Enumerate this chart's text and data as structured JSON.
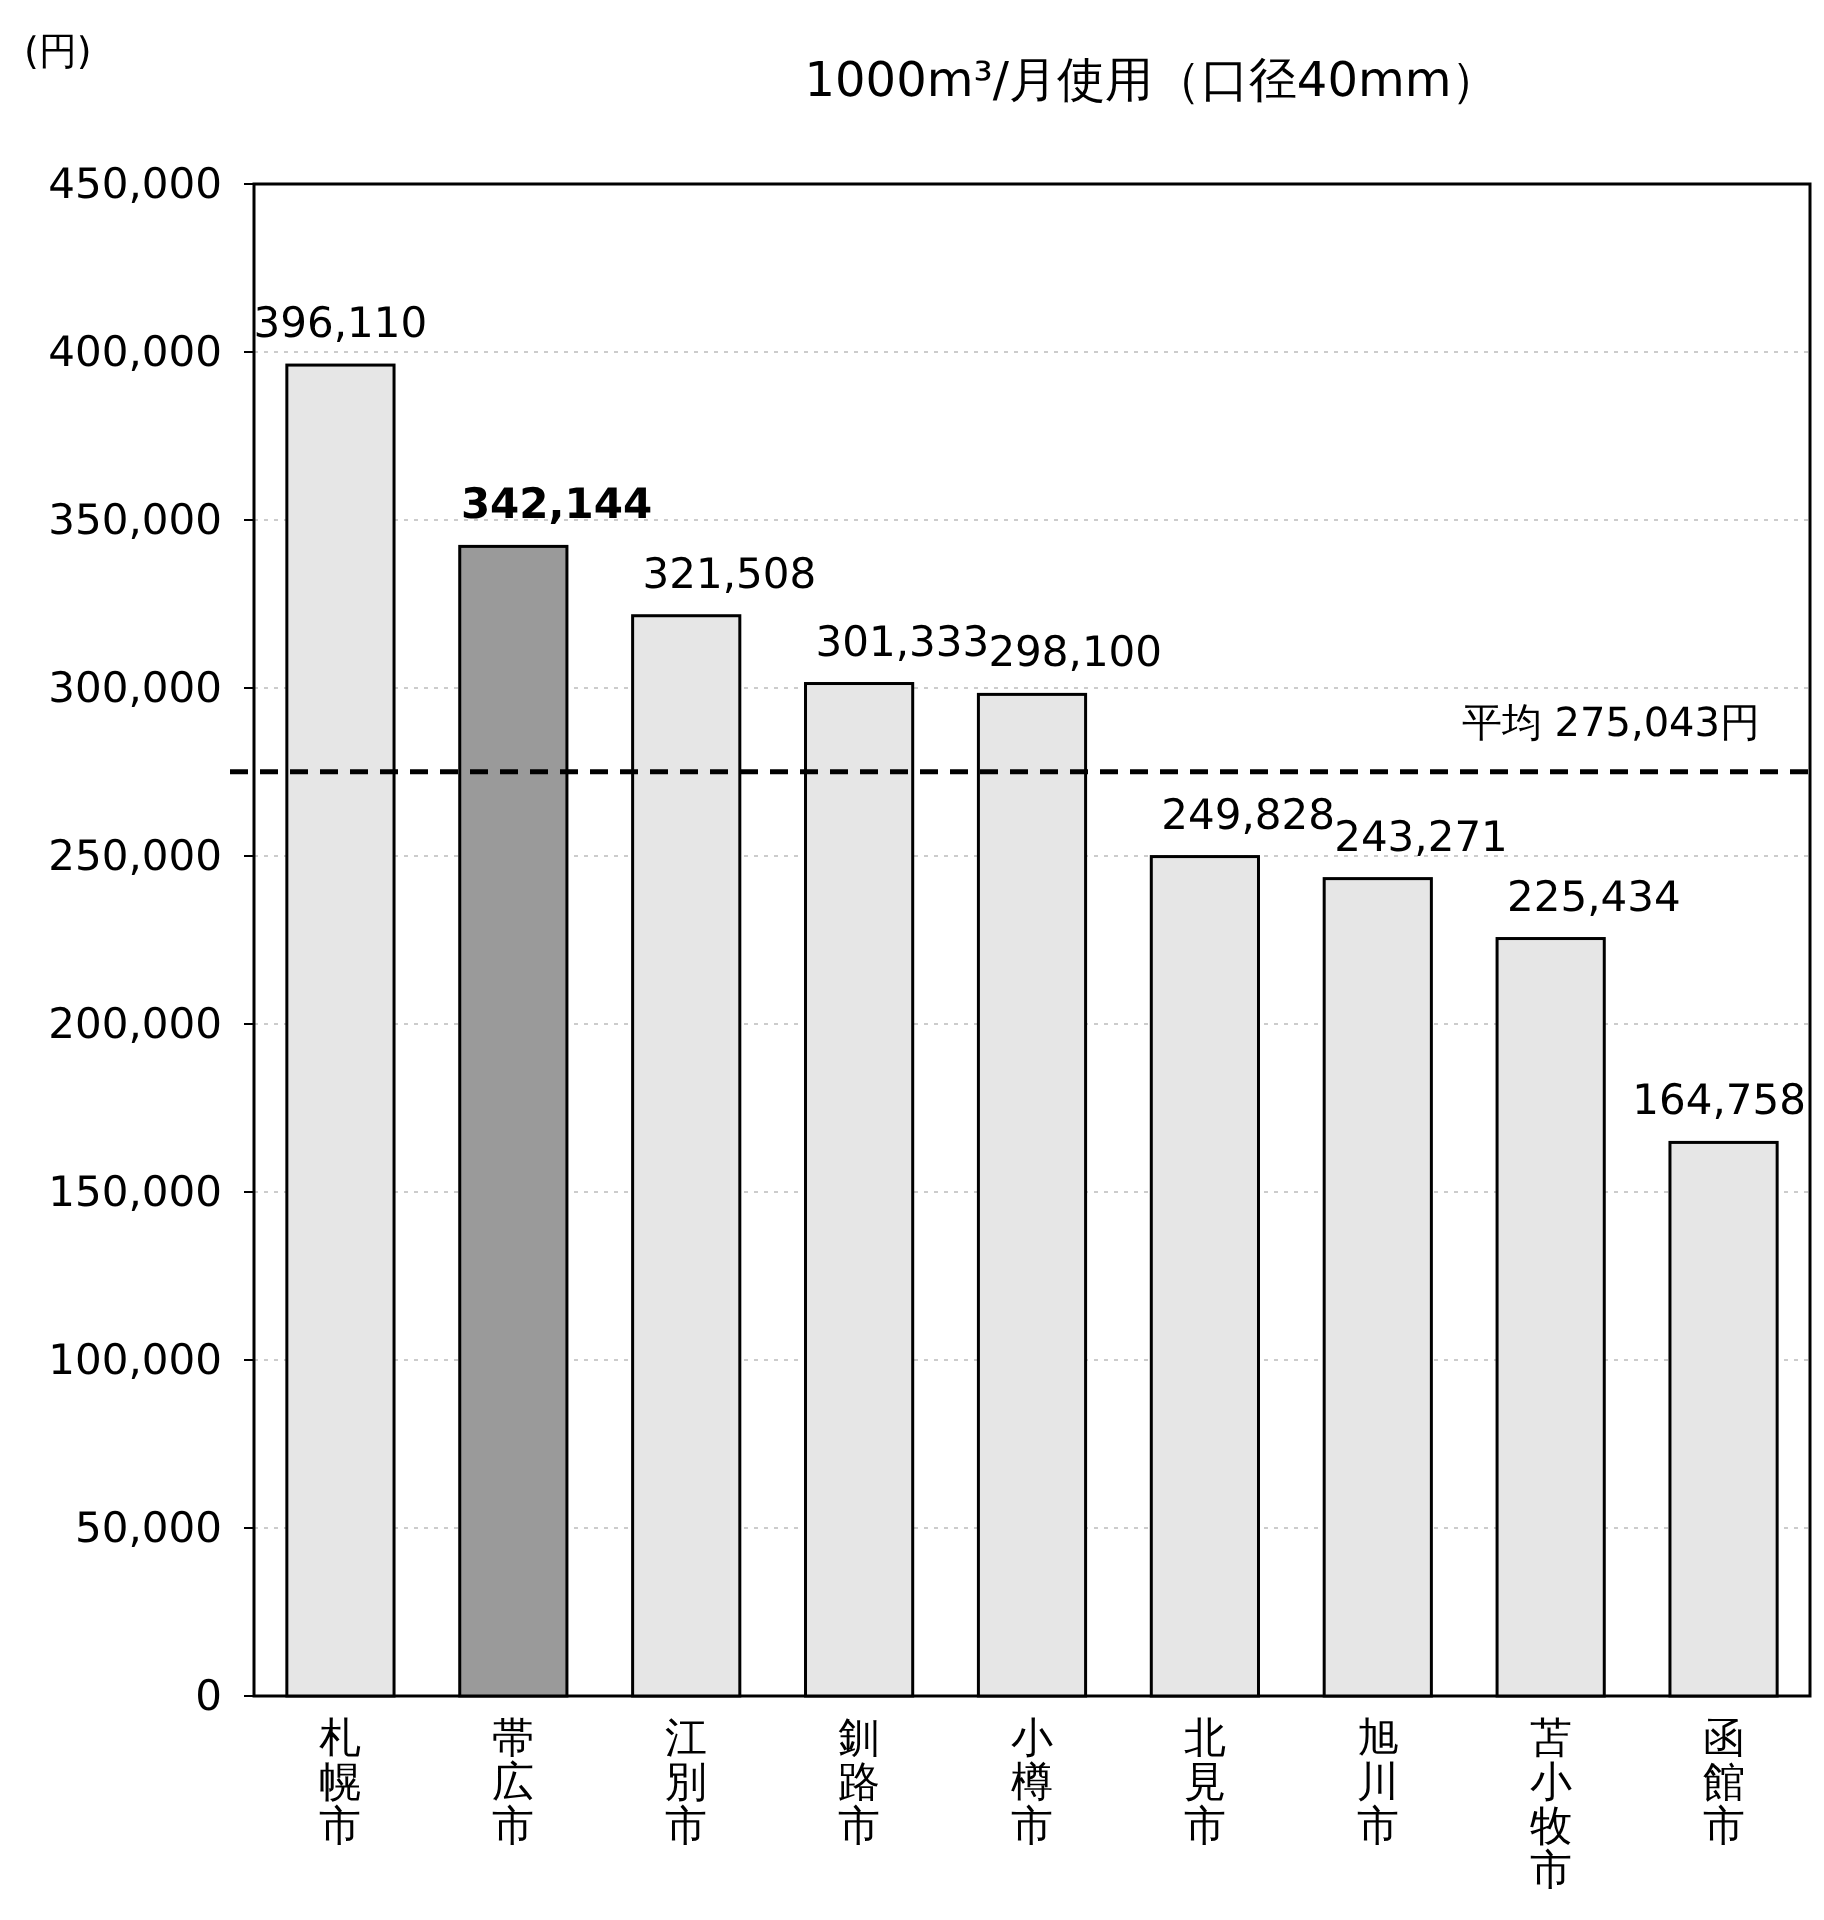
{
  "chart_data": {
    "type": "bar",
    "title": "1000m³/月使用（口径40mm）",
    "ylabel": "(円)",
    "categories": [
      "札幌市",
      "帯広市",
      "江別市",
      "釧路市",
      "小樽市",
      "北見市",
      "旭川市",
      "苫小牧市",
      "函館市"
    ],
    "values": [
      396110,
      342144,
      321508,
      301333,
      298100,
      249828,
      243271,
      225434,
      164758
    ],
    "value_labels": [
      "396,110",
      "**342,144**",
      "321,508",
      "301,333",
      "298,100",
      "249,828",
      "243,271",
      "225,434",
      "164,758"
    ],
    "colors": [
      "#e6e6e6",
      "#9a9a9a",
      "#e6e6e6",
      "#e6e6e6",
      "#e6e6e6",
      "#e6e6e6",
      "#e6e6e6",
      "#e6e6e6",
      "#e6e6e6"
    ],
    "ylim": [
      0,
      450000
    ],
    "yticks": [
      {
        "value": 0,
        "label": "0"
      },
      {
        "value": 50000,
        "label": "50,000"
      },
      {
        "value": 100000,
        "label": "100,000"
      },
      {
        "value": 150000,
        "label": "150,000"
      },
      {
        "value": 200000,
        "label": "200,000"
      },
      {
        "value": 250000,
        "label": "250,000"
      },
      {
        "value": 300000,
        "label": "300,000"
      },
      {
        "value": 350000,
        "label": "350,000"
      },
      {
        "value": 400000,
        "label": "400,000"
      },
      {
        "value": 450000,
        "label": "450,000"
      }
    ],
    "ref_lines": [
      {
        "axis": "y",
        "value": 275043,
        "label": "平均 275,043円",
        "line_style": "dashed",
        "color": "#000000"
      }
    ],
    "grid": "y"
  }
}
